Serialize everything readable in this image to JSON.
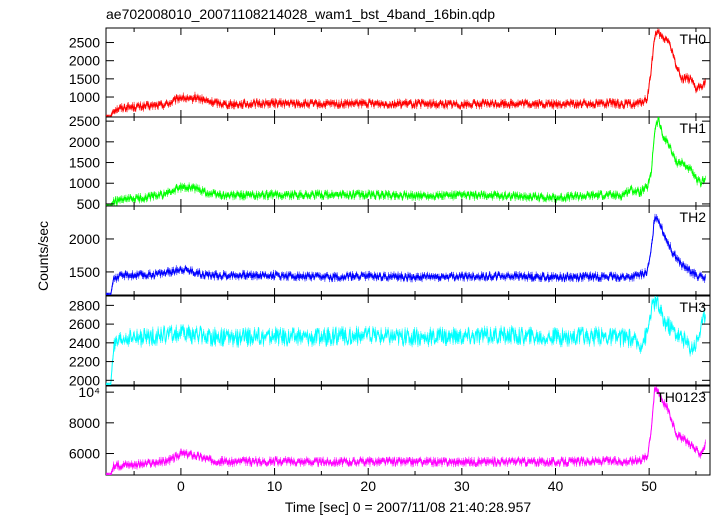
{
  "chart_data": {
    "type": "line",
    "title": "ae702008010_20071108214028_wam1_bst_4band_16bin.qdp",
    "xlabel": "Time [sec] 0 = 2007/11/08 21:40:28.957",
    "ylabel": "Counts/sec",
    "xlim": [
      -8.0,
      56.5
    ],
    "x_ticks": [
      0,
      10,
      20,
      30,
      40,
      50
    ],
    "x_tick_labels": [
      "0",
      "10",
      "20",
      "30",
      "40",
      "50"
    ],
    "panels": [
      {
        "name": "TH0",
        "color": "#ff0000",
        "ylim": [
          450,
          2900
        ],
        "y_ticks": [
          1000,
          1500,
          2000,
          2500
        ],
        "y_tick_labels": [
          "1000",
          "1500",
          "2000",
          "2500"
        ],
        "x": [
          -8.0,
          -7.5,
          -7.2,
          -6.0,
          -4.0,
          -2.0,
          -1.0,
          0.0,
          0.5,
          1.0,
          1.5,
          2.0,
          3.0,
          5.0,
          10.0,
          15.0,
          20.0,
          25.0,
          30.0,
          35.0,
          40.0,
          45.0,
          48.0,
          49.0,
          49.8,
          50.2,
          50.6,
          51.0,
          51.5,
          52.0,
          52.5,
          53.0,
          53.5,
          54.0,
          54.5,
          55.0,
          55.5,
          56.0
        ],
        "y": [
          450,
          450,
          650,
          720,
          740,
          780,
          850,
          1000,
          960,
          900,
          1000,
          950,
          870,
          800,
          830,
          800,
          820,
          810,
          800,
          820,
          800,
          830,
          800,
          830,
          950,
          1700,
          2700,
          2750,
          2600,
          2600,
          2200,
          1800,
          1500,
          1550,
          1450,
          1200,
          1300,
          1400
        ]
      },
      {
        "name": "TH1",
        "color": "#00ff00",
        "ylim": [
          450,
          2600
        ],
        "y_ticks": [
          500,
          1000,
          1500,
          2000,
          2500
        ],
        "y_tick_labels": [
          "500",
          "1000",
          "1500",
          "2000",
          "2500"
        ],
        "x": [
          -8.0,
          -7.5,
          -7.2,
          -6.0,
          -4.0,
          -2.0,
          -1.0,
          0.0,
          1.0,
          2.0,
          3.0,
          5.0,
          10.0,
          15.0,
          20.0,
          25.0,
          30.0,
          35.0,
          40.0,
          45.0,
          47.0,
          48.0,
          49.0,
          49.8,
          50.2,
          50.6,
          51.0,
          51.5,
          52.0,
          52.5,
          53.0,
          53.5,
          54.0,
          54.5,
          55.0,
          55.5,
          56.0
        ],
        "y": [
          450,
          450,
          550,
          600,
          650,
          720,
          800,
          900,
          900,
          850,
          750,
          700,
          720,
          720,
          720,
          700,
          700,
          700,
          650,
          720,
          700,
          850,
          780,
          900,
          1200,
          2300,
          2550,
          2100,
          2000,
          1700,
          1500,
          1500,
          1400,
          1300,
          1100,
          1000,
          1150
        ]
      },
      {
        "name": "TH2",
        "color": "#0000ff",
        "ylim": [
          1150,
          2500
        ],
        "y_ticks": [
          1500,
          2000
        ],
        "y_tick_labels": [
          "1500",
          "2000"
        ],
        "x": [
          -8.0,
          -7.5,
          -7.2,
          -6.0,
          -4.0,
          -2.0,
          -1.0,
          0.0,
          1.0,
          2.0,
          3.0,
          5.0,
          10.0,
          15.0,
          20.0,
          25.0,
          30.0,
          35.0,
          40.0,
          45.0,
          48.0,
          49.0,
          49.8,
          50.2,
          50.6,
          51.0,
          51.5,
          52.0,
          52.5,
          53.0,
          53.5,
          54.0,
          54.5,
          55.0,
          55.5,
          56.0
        ],
        "y": [
          1150,
          1150,
          1400,
          1450,
          1450,
          1480,
          1500,
          1550,
          1520,
          1480,
          1450,
          1450,
          1450,
          1420,
          1440,
          1420,
          1430,
          1440,
          1420,
          1430,
          1420,
          1450,
          1500,
          1800,
          2350,
          2300,
          2100,
          1950,
          1800,
          1700,
          1600,
          1550,
          1500,
          1450,
          1420,
          1400
        ]
      },
      {
        "name": "TH3",
        "color": "#00ffff",
        "ylim": [
          1950,
          2900
        ],
        "y_ticks": [
          2000,
          2200,
          2400,
          2600,
          2800
        ],
        "y_tick_labels": [
          "2000",
          "2200",
          "2400",
          "2600",
          "2800"
        ],
        "x": [
          -8.0,
          -7.5,
          -7.2,
          -6.0,
          -4.0,
          -2.0,
          0.0,
          2.0,
          5.0,
          10.0,
          15.0,
          20.0,
          25.0,
          30.0,
          35.0,
          40.0,
          45.0,
          48.0,
          49.0,
          49.8,
          50.2,
          50.6,
          51.0,
          51.5,
          52.0,
          52.5,
          53.0,
          53.5,
          54.0,
          54.5,
          55.0,
          55.5,
          56.0
        ],
        "y": [
          1950,
          1950,
          2350,
          2450,
          2450,
          2480,
          2500,
          2480,
          2450,
          2470,
          2460,
          2480,
          2460,
          2470,
          2480,
          2460,
          2470,
          2450,
          2380,
          2500,
          2750,
          2850,
          2800,
          2650,
          2600,
          2550,
          2500,
          2450,
          2400,
          2350,
          2400,
          2550,
          2700
        ]
      },
      {
        "name": "TH0123",
        "color": "#ff00ff",
        "ylim": [
          4600,
          10400
        ],
        "y_ticks": [
          6000,
          8000,
          10000
        ],
        "y_tick_labels": [
          "6000",
          "8000",
          "10⁴"
        ],
        "x": [
          -8.0,
          -7.5,
          -7.2,
          -6.0,
          -4.0,
          -2.0,
          -1.0,
          0.0,
          1.0,
          2.0,
          3.0,
          5.0,
          10.0,
          15.0,
          20.0,
          25.0,
          30.0,
          35.0,
          40.0,
          45.0,
          48.0,
          49.0,
          49.8,
          50.2,
          50.6,
          51.0,
          51.5,
          52.0,
          52.5,
          53.0,
          53.5,
          54.0,
          54.5,
          55.0,
          55.5,
          56.0
        ],
        "y": [
          4600,
          4600,
          5150,
          5300,
          5300,
          5450,
          5600,
          6000,
          5950,
          5800,
          5600,
          5450,
          5500,
          5450,
          5480,
          5450,
          5460,
          5480,
          5450,
          5500,
          5500,
          5600,
          5800,
          7500,
          10200,
          10100,
          9400,
          8900,
          8000,
          7200,
          7000,
          6800,
          6600,
          6200,
          6000,
          6600
        ]
      }
    ]
  }
}
